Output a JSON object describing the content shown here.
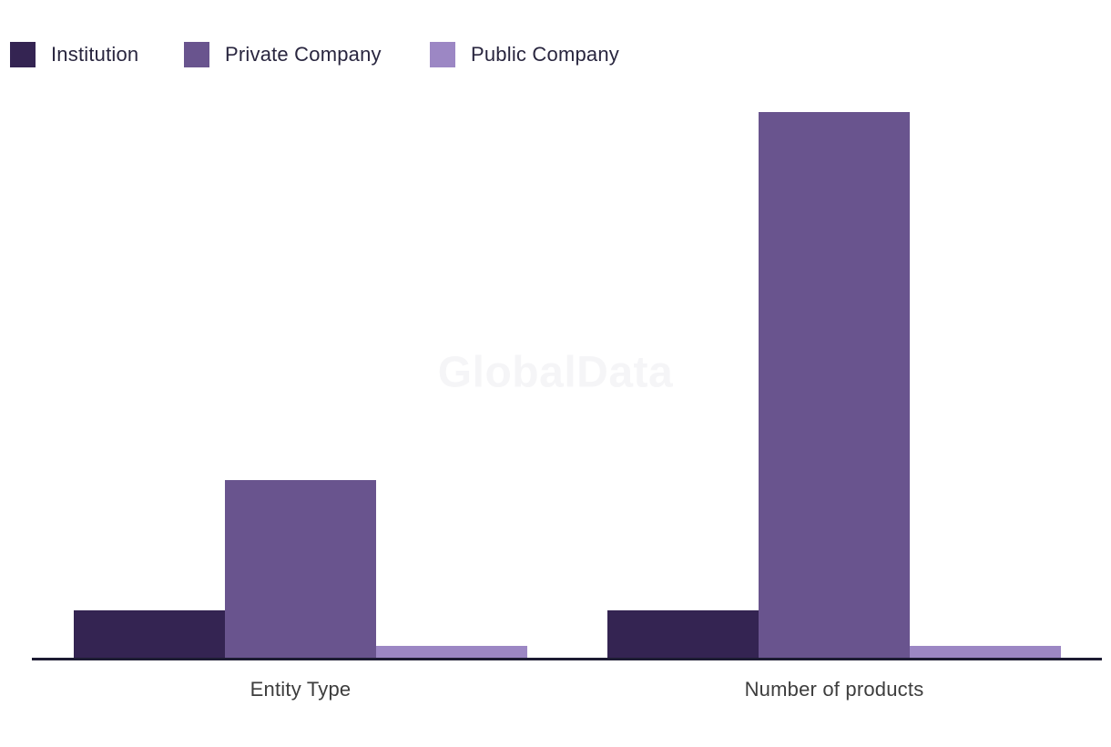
{
  "watermark": "GlobalData",
  "legend": {
    "items": [
      {
        "label": "Institution",
        "color": "#342452"
      },
      {
        "label": "Private Company",
        "color": "#69548e"
      },
      {
        "label": "Public Company",
        "color": "#9c87c4"
      }
    ]
  },
  "chart_data": {
    "type": "bar",
    "categories": [
      "Entity Type",
      "Number of products"
    ],
    "series": [
      {
        "name": "Institution",
        "color": "#342452",
        "values": [
          4,
          4
        ]
      },
      {
        "name": "Private Company",
        "color": "#69548e",
        "values": [
          15,
          46
        ]
      },
      {
        "name": "Public Company",
        "color": "#9c87c4",
        "values": [
          1,
          1
        ]
      }
    ],
    "title": "",
    "xlabel": "",
    "ylabel": "",
    "ylim": [
      0,
      46
    ],
    "grid": false,
    "y_axis_visible": false,
    "legend_position": "top-left",
    "axis_line_color": "#1d1c33",
    "label_color": "#3d3d3d",
    "background_color": "#ffffff"
  }
}
